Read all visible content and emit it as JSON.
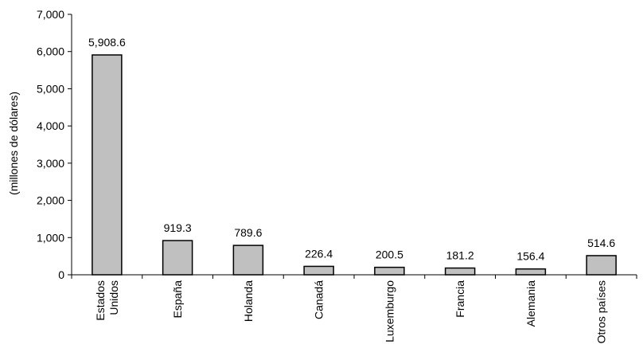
{
  "chart_data": {
    "type": "bar",
    "title": "",
    "xlabel": "",
    "ylabel": "(millones de dólares)",
    "ylim": [
      0,
      7000
    ],
    "yticks": [
      0,
      1000,
      2000,
      3000,
      4000,
      5000,
      6000,
      7000
    ],
    "ytick_labels": [
      "0",
      "1,000",
      "2,000",
      "3,000",
      "4,000",
      "5,000",
      "6,000",
      "7,000"
    ],
    "grid": false,
    "categories": [
      "Estados Unidos",
      "España",
      "Holanda",
      "Canadá",
      "Luxemburgo",
      "Francia",
      "Alemania",
      "Otros países"
    ],
    "category_lines": [
      [
        "Estados",
        "Unidos"
      ],
      [
        "España"
      ],
      [
        "Holanda"
      ],
      [
        "Canadá"
      ],
      [
        "Luxemburgo"
      ],
      [
        "Francia"
      ],
      [
        "Alemania"
      ],
      [
        "Otros países"
      ]
    ],
    "values": [
      5908.6,
      919.3,
      789.6,
      226.4,
      200.5,
      181.2,
      156.4,
      514.6
    ],
    "data_labels": [
      "5,908.6",
      "919.3",
      "789.6",
      "226.4",
      "200.5",
      "181.2",
      "156.4",
      "514.6"
    ],
    "bar_color": "#c0c0c0",
    "bar_edge_color": "#000000"
  }
}
